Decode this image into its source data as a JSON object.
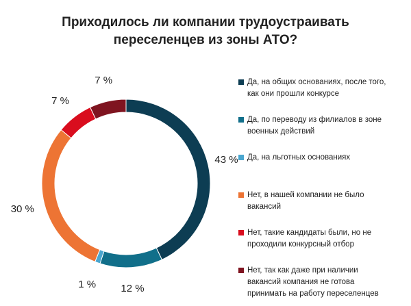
{
  "chart_data": {
    "type": "pie",
    "variant": "donut",
    "title_lines": [
      "Приходилось ли компании трудоустраивать",
      "переселенцев из зоны АТО?"
    ],
    "categories": [
      "Да, на общих основаниях, после того, как они прошли конкурсе",
      "Да, по переводу из филиалов в зоне военных действий",
      "Да, на льготных основаниях",
      "Нет, в нашей компании не было вакансий",
      "Нет, такие кандидаты были, но не проходили конкурсный отбор",
      "Нет, так как даже при наличии вакансий компания не готова принимать на работу переселенцев"
    ],
    "values": [
      43,
      12,
      1,
      30,
      7,
      7
    ],
    "value_labels": [
      "43 %",
      "12 %",
      "1 %",
      "30 %",
      "7 %",
      "7 %"
    ],
    "colors": [
      "#0d3d53",
      "#116f8a",
      "#4aa6cf",
      "#ed7434",
      "#d90d1e",
      "#7f1420"
    ],
    "legend_position": "right",
    "legend_lines": [
      [
        "Да, на общих основаниях, после того,",
        "как они прошли конкурсе"
      ],
      [
        "Да, по переводу из филиалов в зоне",
        "военных действий"
      ],
      [
        "Да, на льготных основаниях"
      ],
      [
        "Нет, в нашей компании не было",
        "вакансий"
      ],
      [
        "Нет, такие кандидаты были, но не",
        "проходили конкурсный отбор"
      ],
      [
        "Нет, так как даже при наличии",
        "вакансий компания не готова",
        "принимать на работу переселенцев"
      ]
    ]
  }
}
